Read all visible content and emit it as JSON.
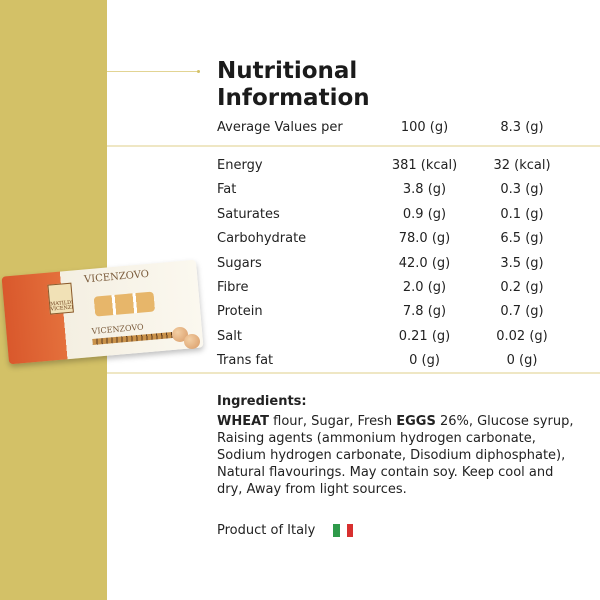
{
  "title": "Nutritional Information",
  "title_lines": [
    "Nutritional",
    "Information"
  ],
  "header": {
    "label": "Average Values per",
    "col1": "100 (g)",
    "col2": "8.3 (g)"
  },
  "rows": [
    {
      "name": "Energy",
      "per100": "381 (kcal)",
      "perServing": "32 (kcal)"
    },
    {
      "name": "Fat",
      "per100": "3.8 (g)",
      "perServing": "0.3 (g)"
    },
    {
      "name": "Saturates",
      "per100": "0.9 (g)",
      "perServing": "0.1 (g)"
    },
    {
      "name": "Carbohydrate",
      "per100": "78.0 (g)",
      "perServing": "6.5 (g)"
    },
    {
      "name": "Sugars",
      "per100": "42.0 (g)",
      "perServing": "3.5 (g)"
    },
    {
      "name": "Fibre",
      "per100": "2.0 (g)",
      "perServing": "0.2 (g)"
    },
    {
      "name": "Protein",
      "per100": "7.8 (g)",
      "perServing": "0.7 (g)"
    },
    {
      "name": "Salt",
      "per100": "0.21 (g)",
      "perServing": "0.02 (g)"
    },
    {
      "name": "Trans fat",
      "per100": "0 (g)",
      "perServing": "0 (g)"
    }
  ],
  "ingredients": {
    "heading": "Ingredients:",
    "parts": [
      {
        "text": "WHEAT",
        "bold": true
      },
      {
        "text": " flour, Sugar, Fresh ",
        "bold": false
      },
      {
        "text": "EGGS",
        "bold": true
      },
      {
        "text": " 26%, Glucose syrup, Raising agents (ammonium hydrogen carbonate, Sodium hydrogen carbonate, Disodium diphosphate), Natural flavourings. May contain soy. Keep cool and dry, Away from light sources.",
        "bold": false
      }
    ]
  },
  "origin": {
    "label": "Product of Italy",
    "flag_colors": [
      "#2e9a4a",
      "#ffffff",
      "#d8302f"
    ]
  },
  "product_image": {
    "brand": "VICENZOVO",
    "maker": "MATILDE VICENZI"
  },
  "colors": {
    "panel": "#d3c167",
    "divider": "#efe7c4"
  }
}
